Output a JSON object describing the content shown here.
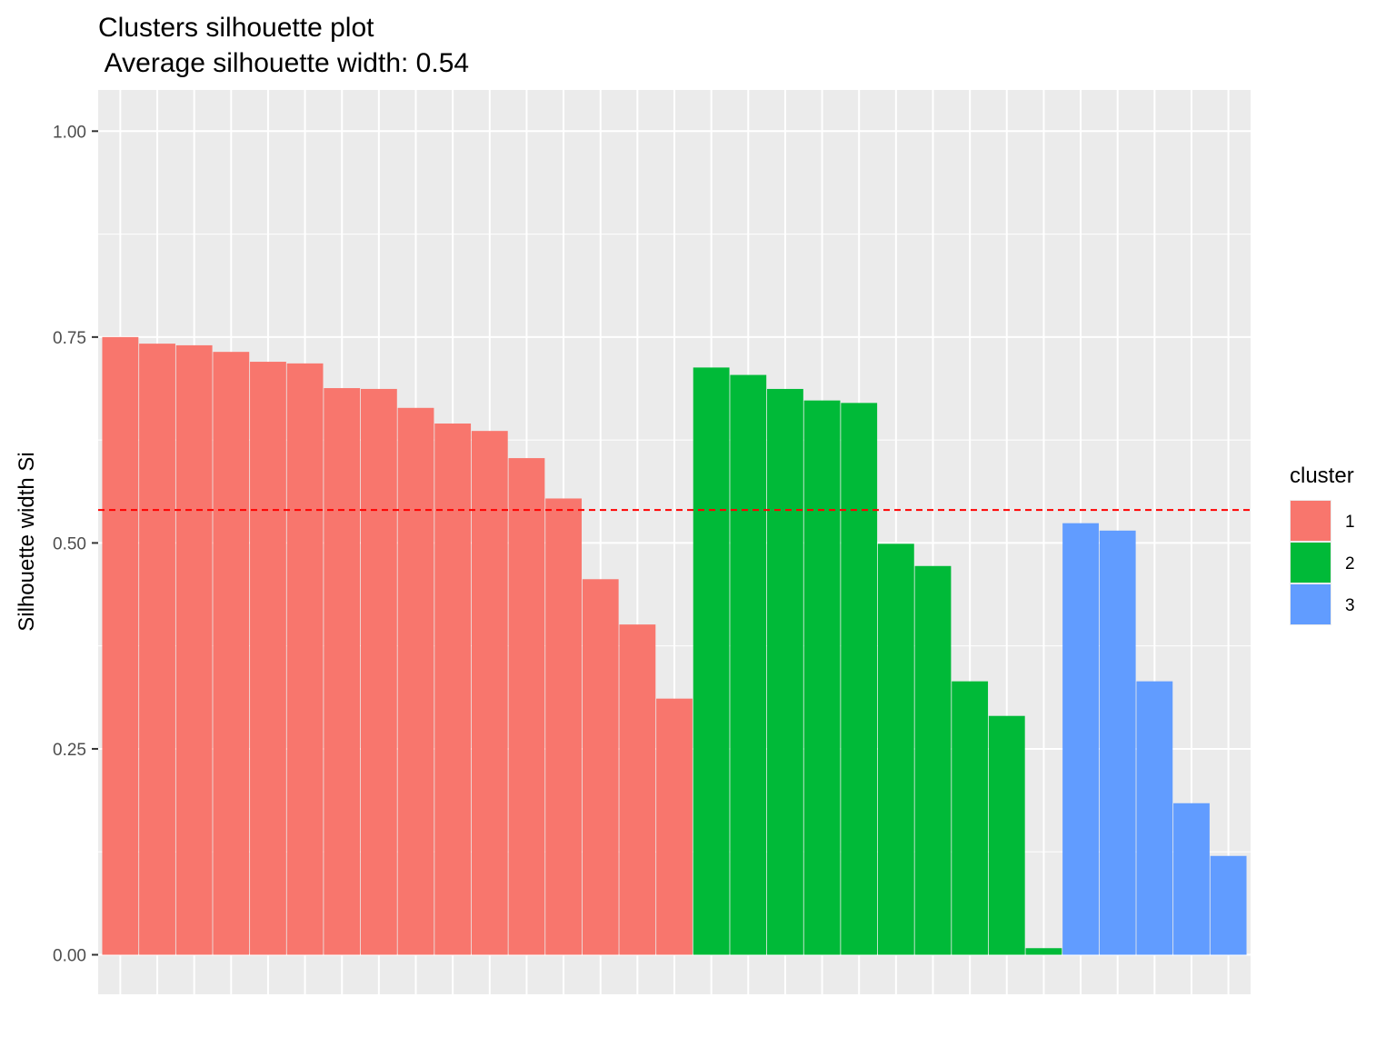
{
  "chart_data": {
    "type": "bar",
    "title": "Clusters silhouette plot",
    "subtitle": " Average silhouette width: 0.54",
    "xlabel": "",
    "ylabel": "Silhouette width Si",
    "ylim": [
      -0.048,
      1.05
    ],
    "yticks": [
      0,
      0.25,
      0.5,
      0.75,
      1
    ],
    "ytick_labels": [
      "0.00",
      "0.25",
      "0.50",
      "0.75",
      "1.00"
    ],
    "grid": true,
    "reference_line": {
      "y": 0.54,
      "color": "#ff0000",
      "style": "dashed"
    },
    "legend": {
      "title": "cluster",
      "position": "right",
      "entries": [
        {
          "label": "1",
          "color": "#F8766D"
        },
        {
          "label": "2",
          "color": "#00BA38"
        },
        {
          "label": "3",
          "color": "#619CFF"
        }
      ]
    },
    "series": [
      {
        "cluster": "1",
        "color": "#F8766D",
        "values": [
          0.75,
          0.742,
          0.74,
          0.732,
          0.72,
          0.718,
          0.688,
          0.687,
          0.664,
          0.645,
          0.636,
          0.603,
          0.554,
          0.456,
          0.401,
          0.311
        ]
      },
      {
        "cluster": "2",
        "color": "#00BA38",
        "values": [
          0.713,
          0.704,
          0.687,
          0.673,
          0.67,
          0.499,
          0.472,
          0.332,
          0.29,
          0.008
        ]
      },
      {
        "cluster": "3",
        "color": "#619CFF",
        "values": [
          0.524,
          0.515,
          0.332,
          0.184,
          0.12
        ]
      }
    ]
  }
}
